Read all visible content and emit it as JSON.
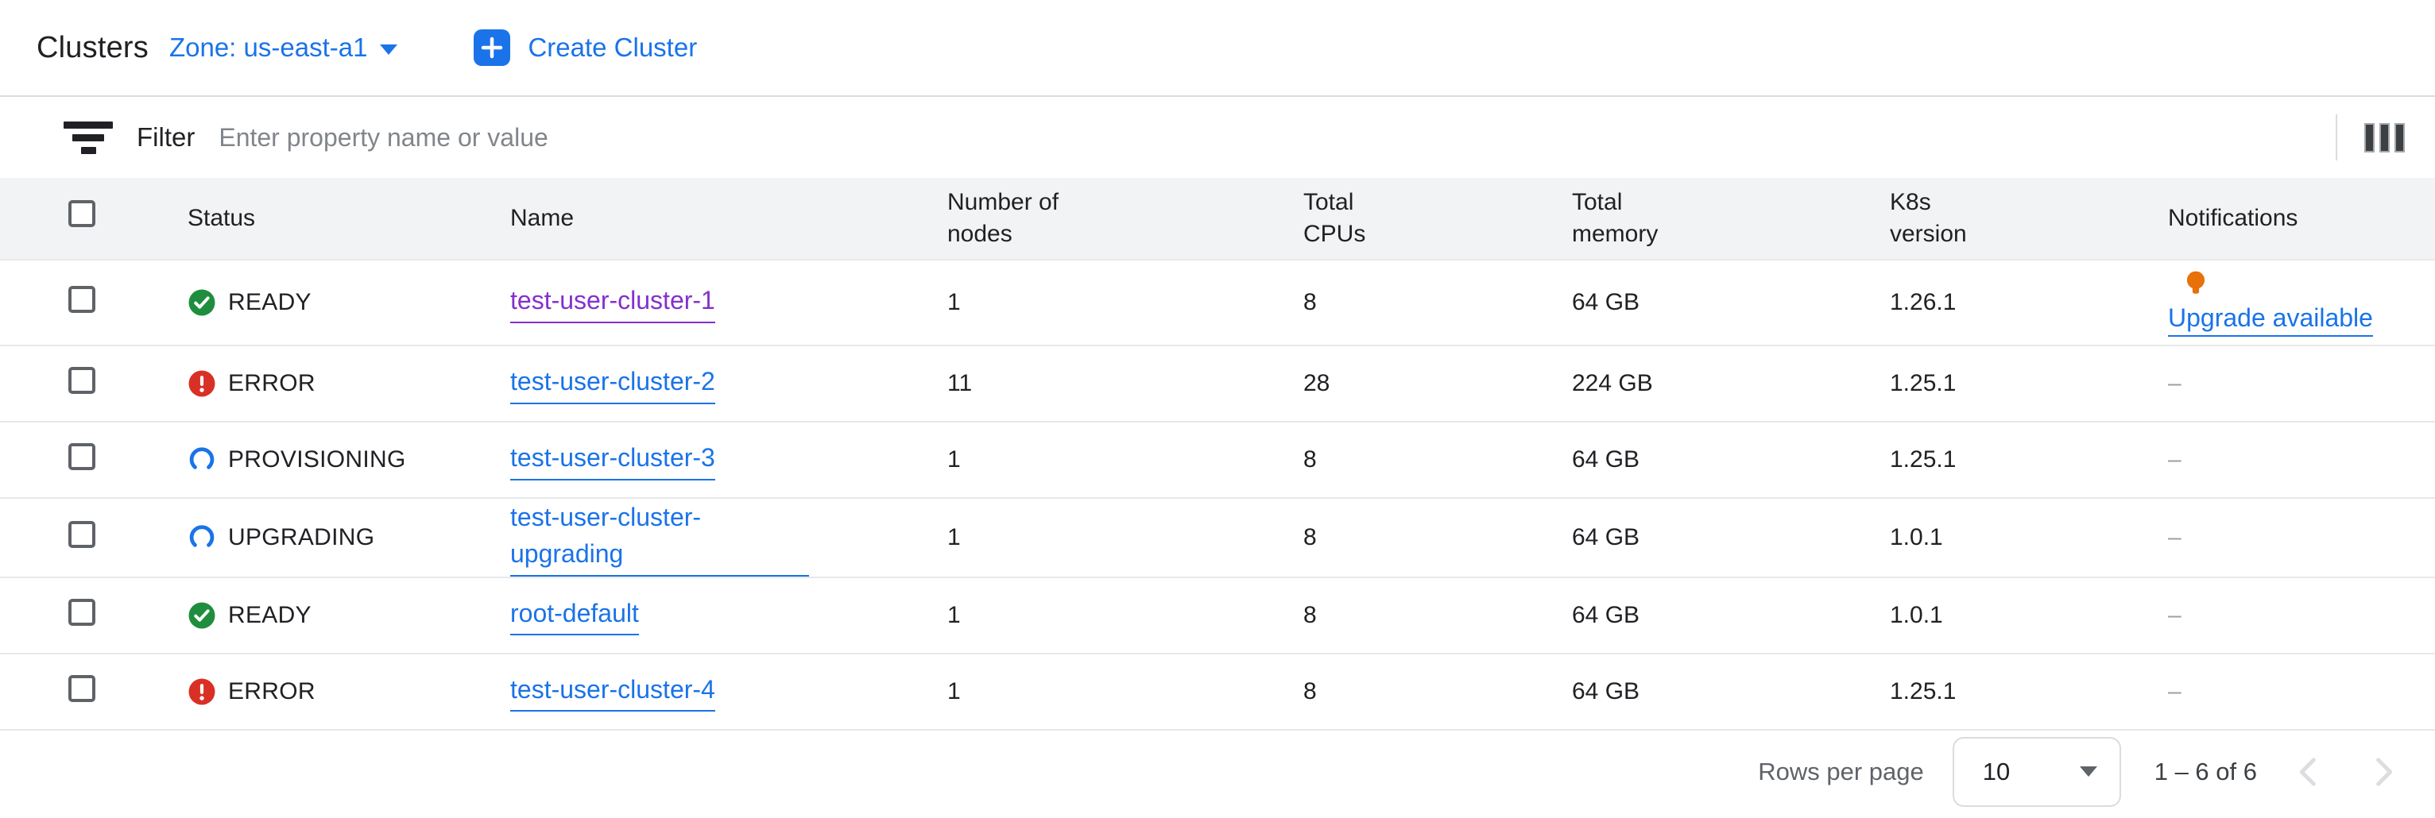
{
  "page": {
    "title": "Clusters",
    "zone_selector": "Zone: us-east-a1",
    "create_button": "Create Cluster"
  },
  "filter_bar": {
    "label": "Filter",
    "placeholder": "Enter property name or value"
  },
  "table": {
    "columns": [
      "Status",
      "Name",
      "Number of nodes",
      "Total CPUs",
      "Total memory",
      "K8s version",
      "Notifications"
    ],
    "empty_notification": "–",
    "rows": [
      {
        "status": "READY",
        "status_kind": "ready",
        "name": "test-user-cluster-1",
        "name_visited": true,
        "nodes": "1",
        "cpus": "8",
        "memory": "64 GB",
        "k8s_version": "1.26.1",
        "notification": "Upgrade available",
        "notification_icon": "lightbulb"
      },
      {
        "status": "ERROR",
        "status_kind": "error",
        "name": "test-user-cluster-2",
        "nodes": "11",
        "cpus": "28",
        "memory": "224 GB",
        "k8s_version": "1.25.1"
      },
      {
        "status": "PROVISIONING",
        "status_kind": "progress",
        "name": "test-user-cluster-3",
        "nodes": "1",
        "cpus": "8",
        "memory": "64 GB",
        "k8s_version": "1.25.1"
      },
      {
        "status": "UPGRADING",
        "status_kind": "progress",
        "name": "test-user-cluster-upgrading",
        "nodes": "1",
        "cpus": "8",
        "memory": "64 GB",
        "k8s_version": "1.0.1"
      },
      {
        "status": "READY",
        "status_kind": "ready",
        "name": "root-default",
        "nodes": "1",
        "cpus": "8",
        "memory": "64 GB",
        "k8s_version": "1.0.1"
      },
      {
        "status": "ERROR",
        "status_kind": "error",
        "name": "test-user-cluster-4",
        "nodes": "1",
        "cpus": "8",
        "memory": "64 GB",
        "k8s_version": "1.25.1"
      }
    ]
  },
  "pagination": {
    "rows_per_page_label": "Rows per page",
    "rows_per_page_value": "10",
    "range": "1 – 6 of 6"
  },
  "colors": {
    "accent_blue": "#1a73e8",
    "visited_purple": "#8430ce",
    "ready_green": "#1e8e3e",
    "error_red": "#d93025",
    "notification_orange": "#e8710a"
  }
}
